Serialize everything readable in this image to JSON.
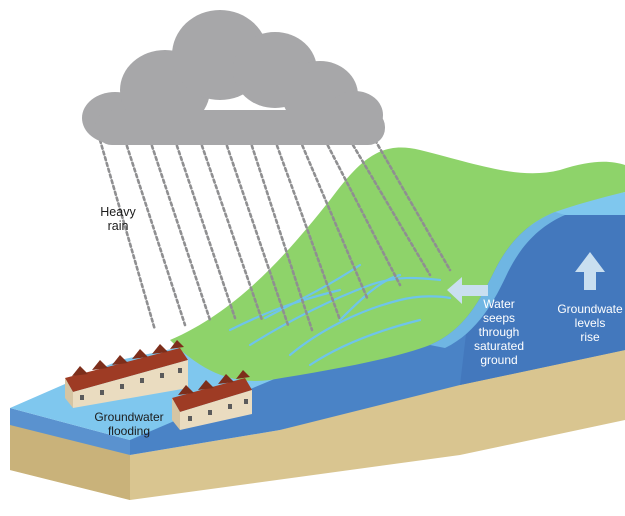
{
  "labels": {
    "heavy_rain": [
      "Heavy",
      "rain"
    ],
    "groundwater_flooding": [
      "Groundwater",
      "flooding"
    ],
    "water_seeps": [
      "Water",
      "seeps",
      "through",
      "saturated",
      "ground"
    ],
    "groundwater_rise": [
      "Groundwate",
      "levels",
      "rise"
    ]
  },
  "colors": {
    "cloud": "#a7a7a9",
    "rain": "#8f8f91",
    "hill_green": "#8ed36a",
    "water_surface": "#7fc7ee",
    "water_body": "#4a83c6",
    "soil": "#d9c590",
    "house_roof": "#9e3b24",
    "house_wall": "#eadcc0",
    "arrow": "#c9dff0"
  },
  "icons": [
    "rain-cloud-icon",
    "left-arrow-icon",
    "up-arrow-icon",
    "house-icon"
  ]
}
